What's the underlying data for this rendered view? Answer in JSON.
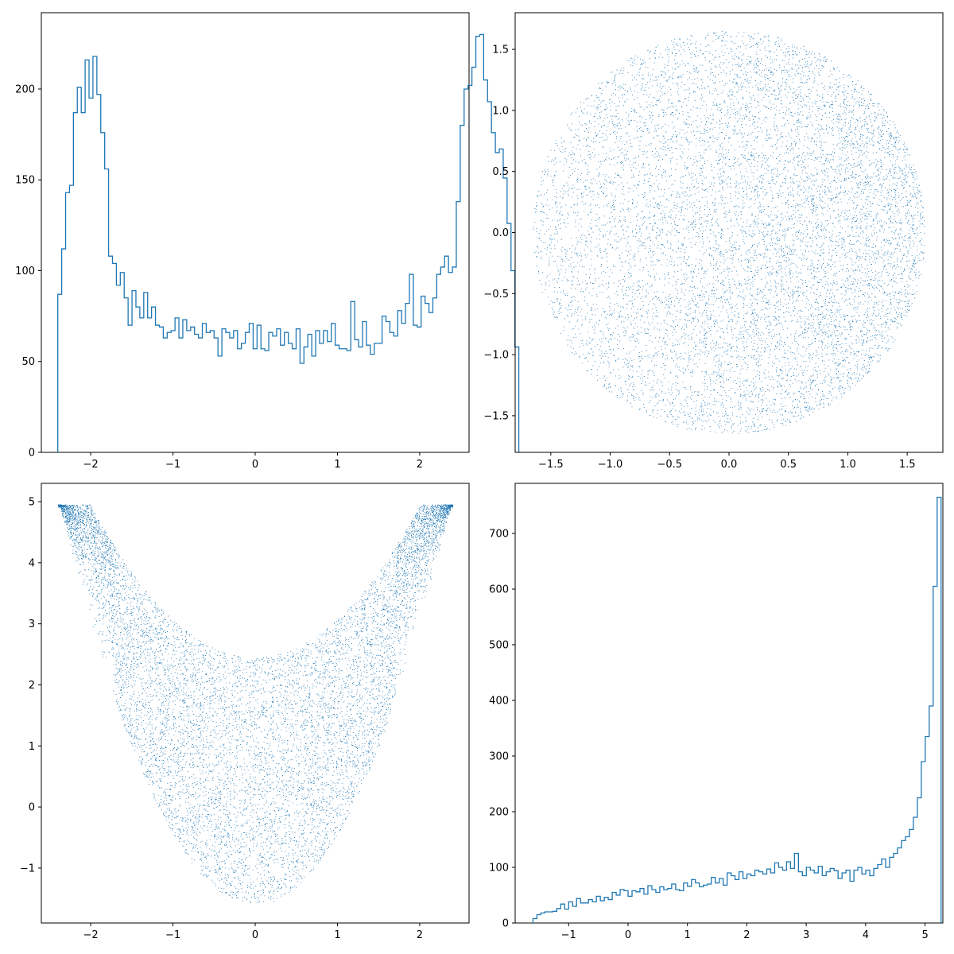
{
  "colors": {
    "series": "#1f77b4",
    "axes": "#000000",
    "background": "#ffffff"
  },
  "chart_data": [
    {
      "type": "histogram",
      "style": "step",
      "xlim": [
        -2.6,
        2.6
      ],
      "ylim": [
        0,
        242
      ],
      "x_ticks": [
        -2,
        -1,
        0,
        1,
        2
      ],
      "y_ticks": [
        0,
        50,
        100,
        150,
        200
      ],
      "x_tick_labels": [
        "−2",
        "−1",
        "0",
        "1",
        "2"
      ],
      "y_tick_labels": [
        "0",
        "50",
        "100",
        "150",
        "200"
      ],
      "bin_start": -2.4,
      "bin_width": 0.0475,
      "counts": [
        87,
        112,
        143,
        147,
        187,
        201,
        187,
        216,
        195,
        218,
        197,
        176,
        156,
        108,
        104,
        92,
        99,
        85,
        70,
        89,
        80,
        74,
        88,
        74,
        80,
        70,
        69,
        63,
        66,
        67,
        74,
        63,
        73,
        67,
        69,
        65,
        63,
        71,
        66,
        67,
        63,
        53,
        68,
        66,
        63,
        67,
        57,
        60,
        66,
        71,
        57,
        70,
        57,
        56,
        66,
        64,
        68,
        59,
        66,
        60,
        57,
        68,
        49,
        58,
        65,
        53,
        67,
        60,
        67,
        61,
        71,
        59,
        57,
        57,
        56,
        83,
        62,
        58,
        72,
        59,
        54,
        60,
        60,
        75,
        72,
        66,
        64,
        78,
        71,
        82,
        98,
        70,
        69,
        86,
        82,
        77,
        85,
        98,
        102,
        108,
        99,
        102,
        138,
        180,
        200,
        202,
        212,
        229,
        230,
        205,
        193,
        176,
        165,
        167,
        151,
        126,
        100,
        58
      ]
    },
    {
      "type": "scatter",
      "shape": "disk",
      "radius": 1.65,
      "density_bias": "denser toward positive x",
      "n_points": 10000,
      "xlim": [
        -1.8,
        1.8
      ],
      "ylim": [
        -1.8,
        1.8
      ],
      "x_ticks": [
        -1.5,
        -1.0,
        -0.5,
        0.0,
        0.5,
        1.0,
        1.5
      ],
      "y_ticks": [
        -1.5,
        -1.0,
        -0.5,
        0.0,
        0.5,
        1.0,
        1.5
      ],
      "x_tick_labels": [
        "−1.5",
        "−1.0",
        "−0.5",
        "0.0",
        "0.5",
        "1.0",
        "1.5"
      ],
      "y_tick_labels": [
        "−1.5",
        "−1.0",
        "−0.5",
        "0.0",
        "0.5",
        "1.0",
        "1.5"
      ]
    },
    {
      "type": "scatter",
      "shape": "u-shaped band",
      "relation": "upper edge y ≈ 2.5 + 0.6·x² capped at 5, lower edge y ≈ -1.6 + 1.2·x²",
      "n_points": 10000,
      "xlim": [
        -2.6,
        2.6
      ],
      "ylim": [
        -1.9,
        5.3
      ],
      "x_ticks": [
        -2,
        -1,
        0,
        1,
        2
      ],
      "y_ticks": [
        -1,
        0,
        1,
        2,
        3,
        4,
        5
      ],
      "x_tick_labels": [
        "−2",
        "−1",
        "0",
        "1",
        "2"
      ],
      "y_tick_labels": [
        "−1",
        "0",
        "1",
        "2",
        "3",
        "4",
        "5"
      ]
    },
    {
      "type": "histogram",
      "style": "step",
      "xlim": [
        -1.9,
        5.3
      ],
      "ylim": [
        0,
        790
      ],
      "x_ticks": [
        -1,
        0,
        1,
        2,
        3,
        4,
        5
      ],
      "y_ticks": [
        0,
        100,
        200,
        300,
        400,
        500,
        600,
        700
      ],
      "x_tick_labels": [
        "−1",
        "0",
        "1",
        "2",
        "3",
        "4",
        "5"
      ],
      "y_tick_labels": [
        "0",
        "100",
        "200",
        "300",
        "400",
        "500",
        "600",
        "700"
      ],
      "bin_start": -1.6,
      "bin_width": 0.0667,
      "counts": [
        8,
        15,
        18,
        20,
        20,
        21,
        26,
        34,
        25,
        38,
        30,
        44,
        36,
        36,
        42,
        38,
        48,
        40,
        46,
        42,
        55,
        50,
        60,
        58,
        48,
        58,
        56,
        62,
        52,
        67,
        60,
        55,
        65,
        60,
        62,
        70,
        60,
        58,
        72,
        66,
        78,
        72,
        65,
        68,
        70,
        82,
        72,
        80,
        68,
        90,
        85,
        78,
        92,
        80,
        88,
        85,
        95,
        92,
        88,
        97,
        90,
        108,
        100,
        95,
        110,
        98,
        125,
        92,
        85,
        100,
        95,
        90,
        102,
        85,
        92,
        98,
        94,
        80,
        90,
        95,
        75,
        95,
        100,
        88,
        95,
        85,
        98,
        105,
        115,
        100,
        118,
        125,
        135,
        148,
        155,
        168,
        190,
        225,
        290,
        335,
        390,
        605,
        765
      ]
    }
  ]
}
